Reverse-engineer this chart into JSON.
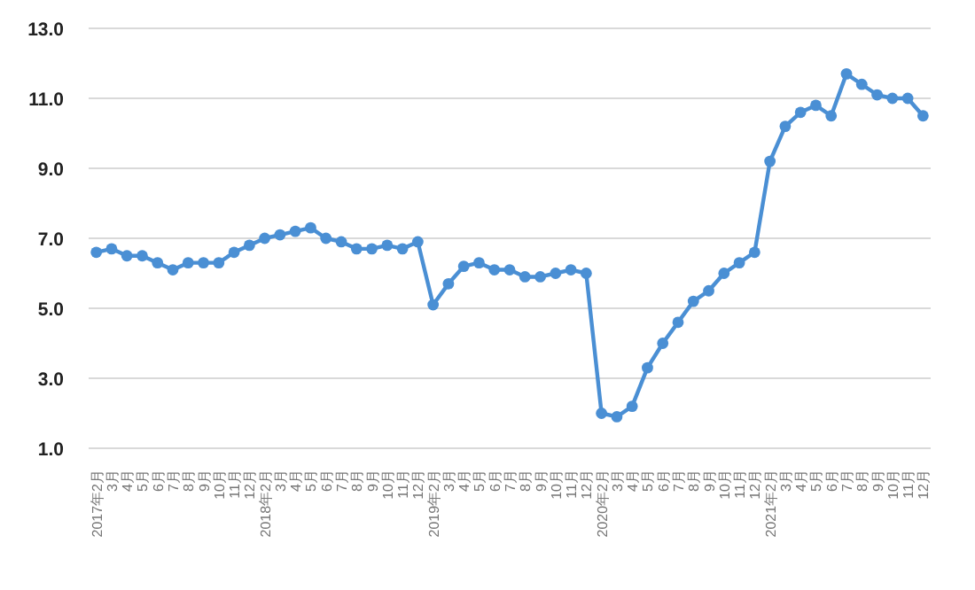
{
  "chart_data": {
    "type": "line",
    "categories": [
      "2017年2月",
      "3月",
      "4月",
      "5月",
      "6月",
      "7月",
      "8月",
      "9月",
      "10月",
      "11月",
      "12月",
      "2018年2月",
      "3月",
      "4月",
      "5月",
      "6月",
      "7月",
      "8月",
      "9月",
      "10月",
      "11月",
      "12月",
      "2019年2月",
      "3月",
      "4月",
      "5月",
      "6月",
      "7月",
      "8月",
      "9月",
      "10月",
      "11月",
      "12月",
      "2020年2月",
      "3月",
      "4月",
      "5月",
      "6月",
      "7月",
      "8月",
      "9月",
      "10月",
      "11月",
      "12月",
      "2021年2月",
      "3月",
      "4月",
      "5月",
      "6月",
      "7月",
      "8月",
      "9月",
      "10月",
      "11月",
      "12月"
    ],
    "series": [
      {
        "color": "#4a8fd4",
        "values": [
          6.6,
          6.7,
          6.5,
          6.5,
          6.3,
          6.1,
          6.3,
          6.3,
          6.3,
          6.6,
          6.8,
          7.0,
          7.1,
          7.2,
          7.3,
          7.0,
          6.9,
          6.7,
          6.7,
          6.8,
          6.7,
          6.9,
          5.1,
          5.7,
          6.2,
          6.3,
          6.1,
          6.1,
          5.9,
          5.9,
          6.0,
          6.1,
          6.0,
          2.0,
          1.9,
          2.2,
          3.3,
          4.0,
          4.6,
          5.2,
          5.5,
          6.0,
          6.3,
          6.6,
          9.2,
          10.2,
          10.6,
          10.8,
          10.5,
          11.7,
          11.4,
          11.1,
          11.0,
          11.0,
          10.5
        ]
      }
    ],
    "ylim": [
      1,
      13
    ],
    "yticks": [
      {
        "value": 1,
        "label": "1.0"
      },
      {
        "value": 3,
        "label": "3.0"
      },
      {
        "value": 5,
        "label": "5.0"
      },
      {
        "value": 7,
        "label": "7.0"
      },
      {
        "value": 9,
        "label": "9.0"
      },
      {
        "value": 11,
        "label": "11.0"
      },
      {
        "value": 13,
        "label": "13.0"
      }
    ],
    "grid": "y",
    "marker": "circle",
    "line_style": "solid"
  }
}
